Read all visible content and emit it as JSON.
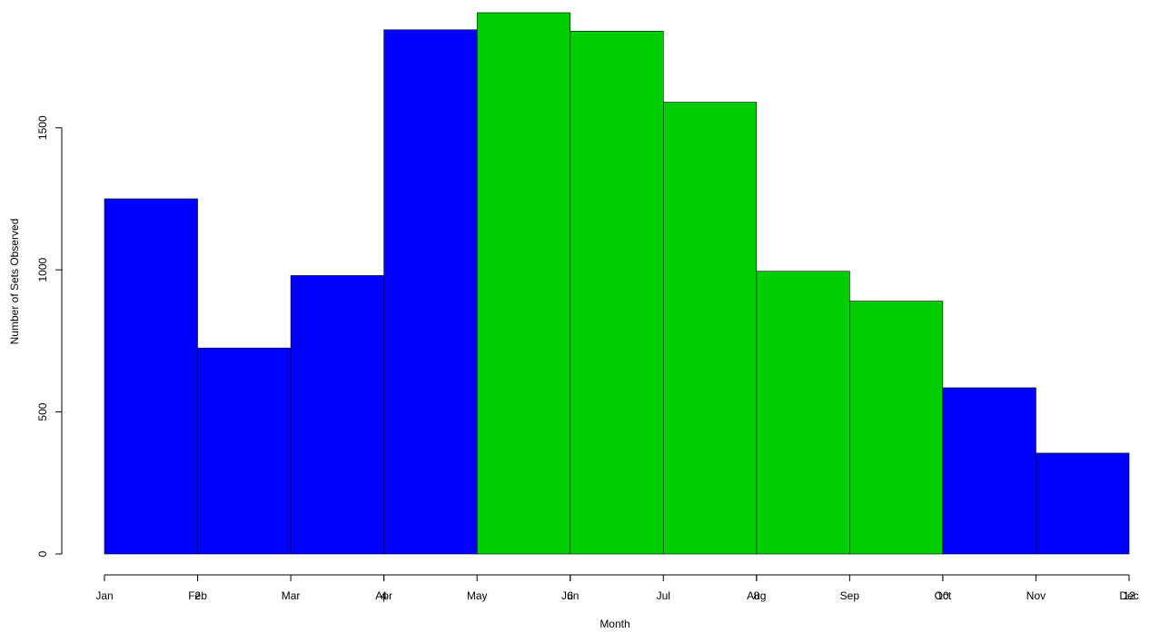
{
  "chart_data": {
    "type": "histogram",
    "x_label": "Month",
    "y_label": "Number of Sets Observed",
    "bins": [
      1,
      2,
      3,
      4,
      5,
      6,
      7,
      8,
      9,
      10,
      11,
      12
    ],
    "counts": [
      1250,
      725,
      980,
      1845,
      1905,
      1840,
      1590,
      995,
      890,
      585,
      355
    ],
    "colors": [
      "#0000ff",
      "#0000ff",
      "#0000ff",
      "#0000ff",
      "#00cd00",
      "#00cd00",
      "#00cd00",
      "#00cd00",
      "#00cd00",
      "#0000ff",
      "#0000ff"
    ],
    "xlim": [
      1,
      12
    ],
    "ylim": [
      0,
      1905
    ],
    "xticks": [
      2,
      4,
      6,
      8,
      10,
      12
    ],
    "month_ticks": [
      {
        "value": 1,
        "label": "Jan"
      },
      {
        "value": 2,
        "label": "Feb"
      },
      {
        "value": 3,
        "label": "Mar"
      },
      {
        "value": 4,
        "label": "Apr"
      },
      {
        "value": 5,
        "label": "May"
      },
      {
        "value": 6,
        "label": "Jun"
      },
      {
        "value": 7,
        "label": "Jul"
      },
      {
        "value": 8,
        "label": "Aug"
      },
      {
        "value": 9,
        "label": "Sep"
      },
      {
        "value": 10,
        "label": "Oct"
      },
      {
        "value": 11,
        "label": "Nov"
      },
      {
        "value": 12,
        "label": "Dec"
      }
    ],
    "yticks": [
      0,
      500,
      1000,
      1500
    ]
  }
}
